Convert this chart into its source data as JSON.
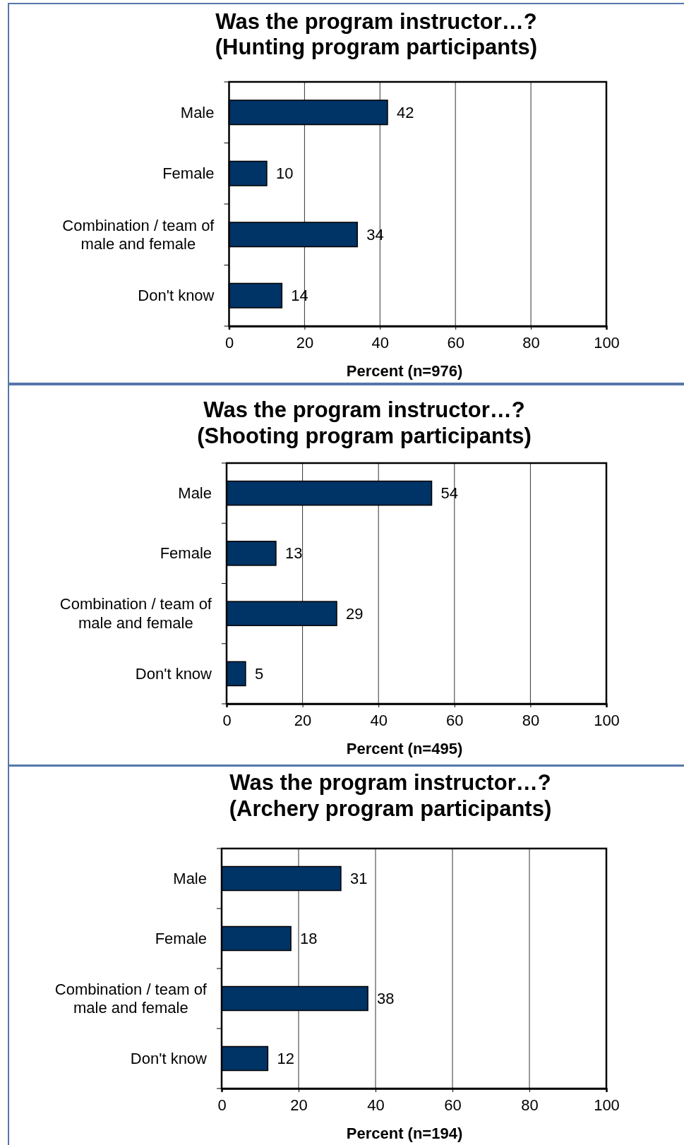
{
  "chart_data": [
    {
      "type": "bar",
      "orientation": "horizontal",
      "title": "Was the program instructor…?",
      "subtitle": "(Hunting program participants)",
      "xlabel": "Percent (n=976)",
      "categories": [
        "Male",
        "Female",
        "Combination / team of male and female",
        "Don't know"
      ],
      "values": [
        42,
        10,
        34,
        14
      ],
      "color": "#003366",
      "xlim": [
        0,
        100
      ],
      "xticks": [
        0,
        20,
        40,
        60,
        80,
        100
      ],
      "grid": "x",
      "data_labels": true
    },
    {
      "type": "bar",
      "orientation": "horizontal",
      "title": "Was the program instructor…?",
      "subtitle": "(Shooting program participants)",
      "xlabel": "Percent (n=495)",
      "categories": [
        "Male",
        "Female",
        "Combination / team of male and female",
        "Don't know"
      ],
      "values": [
        54,
        13,
        29,
        5
      ],
      "color": "#003366",
      "xlim": [
        0,
        100
      ],
      "xticks": [
        0,
        20,
        40,
        60,
        80,
        100
      ],
      "grid": "x",
      "data_labels": true
    },
    {
      "type": "bar",
      "orientation": "horizontal",
      "title": "Was the program instructor…?",
      "subtitle": "(Archery program participants)",
      "xlabel": "Percent (n=194)",
      "categories": [
        "Male",
        "Female",
        "Combination / team of male and female",
        "Don't know"
      ],
      "values": [
        31,
        18,
        38,
        12
      ],
      "color": "#003366",
      "xlim": [
        0,
        100
      ],
      "xticks": [
        0,
        20,
        40,
        60,
        80,
        100
      ],
      "grid": "x",
      "data_labels": true
    }
  ]
}
